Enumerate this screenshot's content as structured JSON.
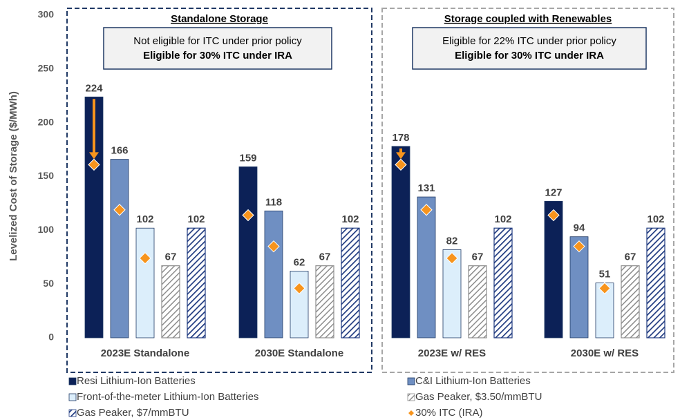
{
  "chart_data": {
    "type": "bar",
    "ylabel": "Levelized Cost of Storage ($/MWh)",
    "categories": [
      "2023E Standalone",
      "2030E Standalone",
      "2023E w/ RES",
      "2030E w/ RES"
    ],
    "ylim": [
      0,
      300
    ],
    "yticks": [
      0,
      50,
      100,
      150,
      200,
      250,
      300
    ],
    "grid": false,
    "panels": [
      {
        "title": "Standalone Storage",
        "notes": [
          "Not eligible for ITC under prior policy",
          "Eligible for 30% ITC under IRA"
        ]
      },
      {
        "title": "Storage coupled with Renewables",
        "notes": [
          "Eligible for 22% ITC under prior policy",
          "Eligible for 30% ITC under IRA"
        ]
      }
    ],
    "series": [
      {
        "name": "Resi Lithium-Ion Batteries",
        "color": "#0c2157",
        "values": [
          224,
          159,
          178,
          127
        ]
      },
      {
        "name": "C&I Lithium-Ion Batteries",
        "color": "#6f8fc2",
        "values": [
          166,
          118,
          131,
          94
        ]
      },
      {
        "name": "Front-of-the-meter Lithium-Ion Batteries",
        "color": "#dceefb",
        "values": [
          102,
          62,
          82,
          51
        ]
      },
      {
        "name": "Gas Peaker, $3.50/mmBTU",
        "color": "#8c8c8c",
        "hatch": true,
        "values": [
          67,
          67,
          67,
          67
        ]
      },
      {
        "name": "Gas Peaker, $7/mmBTU",
        "color": "#1f3a80",
        "hatch": true,
        "values": [
          102,
          102,
          102,
          102
        ]
      }
    ],
    "markers": {
      "name": "30% ITC (IRA)",
      "color": "#f7941d",
      "values": [
        [
          161,
          119,
          74,
          null,
          null
        ],
        [
          114,
          85,
          46,
          null,
          null
        ],
        [
          161,
          119,
          74,
          null,
          null
        ],
        [
          114,
          85,
          46,
          null,
          null
        ]
      ]
    }
  }
}
